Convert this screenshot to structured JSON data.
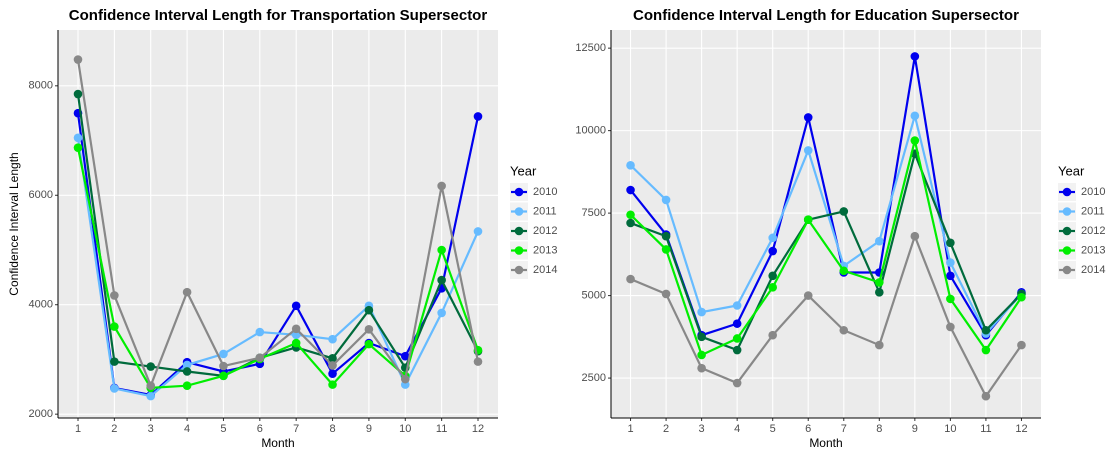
{
  "chart_data": [
    {
      "type": "line",
      "title": "Confidence Interval Length for Transportation Supersector",
      "x_label": "Month",
      "y_label": "Confidence Interval Length",
      "legend_title": "Year",
      "x": [
        1,
        2,
        3,
        4,
        5,
        6,
        7,
        8,
        9,
        10,
        11,
        12
      ],
      "xlim": [
        0.45,
        12.55
      ],
      "xticks": [
        1,
        2,
        3,
        4,
        5,
        6,
        7,
        8,
        9,
        10,
        11,
        12
      ],
      "ylim": [
        1930,
        9020
      ],
      "yticks": [
        2000,
        4000,
        6000,
        8000
      ],
      "grid": true,
      "series": [
        {
          "name": "2010",
          "color": "#0000ee",
          "values": [
            7500,
            2480,
            2350,
            2950,
            2780,
            2920,
            3980,
            2740,
            3300,
            3060,
            4300,
            7440
          ]
        },
        {
          "name": "2011",
          "color": "#66bbff",
          "values": [
            7050,
            2470,
            2330,
            2900,
            3100,
            3500,
            3450,
            3370,
            3980,
            2540,
            3850,
            5340
          ]
        },
        {
          "name": "2012",
          "color": "#006b3c",
          "values": [
            7850,
            2960,
            2870,
            2780,
            2700,
            3030,
            3220,
            3020,
            3900,
            2850,
            4450,
            3150
          ]
        },
        {
          "name": "2013",
          "color": "#00ee00",
          "values": [
            6870,
            3600,
            2480,
            2520,
            2700,
            3010,
            3300,
            2540,
            3280,
            2700,
            5000,
            3170
          ]
        },
        {
          "name": "2014",
          "color": "#888888",
          "values": [
            8480,
            4170,
            2520,
            4230,
            2880,
            3030,
            3560,
            2890,
            3550,
            2640,
            6170,
            2960
          ]
        }
      ]
    },
    {
      "type": "line",
      "title": "Confidence Interval Length for Education Supersector",
      "x_label": "Month",
      "legend_title": "Year",
      "x": [
        1,
        2,
        3,
        4,
        5,
        6,
        7,
        8,
        9,
        10,
        11,
        12
      ],
      "xlim": [
        0.45,
        12.55
      ],
      "xticks": [
        1,
        2,
        3,
        4,
        5,
        6,
        7,
        8,
        9,
        10,
        11,
        12
      ],
      "ylim": [
        1290,
        13050
      ],
      "yticks": [
        2500,
        5000,
        7500,
        10000,
        12500
      ],
      "grid": true,
      "series": [
        {
          "name": "2010",
          "color": "#0000ee",
          "values": [
            8200,
            6850,
            3800,
            4150,
            6350,
            10400,
            5700,
            5700,
            12250,
            5600,
            3800,
            5100
          ]
        },
        {
          "name": "2011",
          "color": "#66bbff",
          "values": [
            8950,
            7900,
            4500,
            4700,
            6750,
            9400,
            5900,
            6650,
            10450,
            6000,
            3850,
            5050
          ]
        },
        {
          "name": "2012",
          "color": "#006b3c",
          "values": [
            7200,
            6800,
            3750,
            3350,
            5600,
            7300,
            7550,
            5100,
            9300,
            6600,
            3950,
            5050
          ]
        },
        {
          "name": "2013",
          "color": "#00ee00",
          "values": [
            7450,
            6400,
            3200,
            3700,
            5250,
            7300,
            5750,
            5400,
            9700,
            4900,
            3350,
            4950
          ]
        },
        {
          "name": "2014",
          "color": "#888888",
          "values": [
            5500,
            5050,
            2800,
            2350,
            3800,
            5000,
            3950,
            3500,
            6800,
            4050,
            1950,
            3500
          ]
        }
      ]
    }
  ]
}
